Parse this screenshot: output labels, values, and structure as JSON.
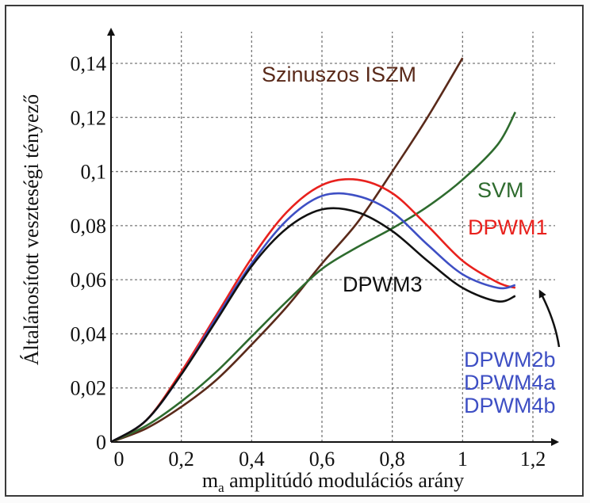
{
  "chart_data": {
    "type": "line",
    "title": "",
    "xlabel_main": "m",
    "xlabel_sub": "a",
    "xlabel_rest": " amplitúdó modulációs arány",
    "ylabel": "Általánosított veszteségi tényező",
    "xlim": [
      0,
      1.2
    ],
    "ylim": [
      0,
      0.14
    ],
    "grid": true,
    "xticks": [
      {
        "value": 0,
        "label": "0"
      },
      {
        "value": 0.2,
        "label": "0,2"
      },
      {
        "value": 0.4,
        "label": "0,4"
      },
      {
        "value": 0.6,
        "label": "0,6"
      },
      {
        "value": 0.8,
        "label": "0,8"
      },
      {
        "value": 1.0,
        "label": "1"
      },
      {
        "value": 1.2,
        "label": "1,2"
      }
    ],
    "yticks": [
      {
        "value": 0,
        "label": "0"
      },
      {
        "value": 0.02,
        "label": "0,02"
      },
      {
        "value": 0.04,
        "label": "0,04"
      },
      {
        "value": 0.06,
        "label": "0,06"
      },
      {
        "value": 0.08,
        "label": "0,08"
      },
      {
        "value": 0.1,
        "label": "0,1"
      },
      {
        "value": 0.12,
        "label": "0,12"
      },
      {
        "value": 0.14,
        "label": "0,14"
      }
    ],
    "series": [
      {
        "name": "Szinuszos ISZM",
        "color": "#5a2a1a",
        "x": [
          0,
          0.1,
          0.2,
          0.3,
          0.4,
          0.5,
          0.6,
          0.7,
          0.8,
          0.9,
          1.0
        ],
        "y": [
          0,
          0.005,
          0.013,
          0.023,
          0.036,
          0.05,
          0.066,
          0.081,
          0.1,
          0.12,
          0.142
        ]
      },
      {
        "name": "SVM",
        "color": "#2e6b2e",
        "x": [
          0,
          0.1,
          0.2,
          0.3,
          0.4,
          0.5,
          0.6,
          0.7,
          0.8,
          0.9,
          1.0,
          1.1,
          1.15
        ],
        "y": [
          0,
          0.006,
          0.015,
          0.026,
          0.039,
          0.052,
          0.064,
          0.072,
          0.079,
          0.087,
          0.097,
          0.11,
          0.122
        ]
      },
      {
        "name": "DPWM1",
        "color": "#e8211d",
        "x": [
          0,
          0.1,
          0.2,
          0.3,
          0.4,
          0.5,
          0.6,
          0.7,
          0.8,
          0.9,
          1.0,
          1.1,
          1.15
        ],
        "y": [
          0,
          0.008,
          0.026,
          0.047,
          0.068,
          0.085,
          0.095,
          0.097,
          0.092,
          0.08,
          0.067,
          0.059,
          0.057
        ]
      },
      {
        "name": "DPWM2b, DPWM4a, DPWM4b",
        "color": "#3e4fc4",
        "x": [
          0,
          0.1,
          0.2,
          0.3,
          0.4,
          0.5,
          0.6,
          0.7,
          0.8,
          0.9,
          1.0,
          1.1,
          1.15
        ],
        "y": [
          0,
          0.008,
          0.025,
          0.046,
          0.066,
          0.082,
          0.091,
          0.091,
          0.085,
          0.073,
          0.062,
          0.057,
          0.058
        ]
      },
      {
        "name": "DPWM3",
        "color": "#111111",
        "x": [
          0,
          0.1,
          0.2,
          0.3,
          0.4,
          0.5,
          0.6,
          0.7,
          0.8,
          0.9,
          1.0,
          1.1,
          1.15
        ],
        "y": [
          0,
          0.008,
          0.025,
          0.045,
          0.065,
          0.079,
          0.086,
          0.085,
          0.078,
          0.067,
          0.057,
          0.052,
          0.054
        ]
      }
    ],
    "labels": [
      {
        "text": "Szinuszos ISZM",
        "color": "#5a2a1a"
      },
      {
        "text": "SVM",
        "color": "#2e6b2e"
      },
      {
        "text": "DPWM1",
        "color": "#e8211d"
      },
      {
        "text": "DPWM3",
        "color": "#111111"
      },
      {
        "text": "DPWM2b",
        "color": "#3e4fc4"
      },
      {
        "text": "DPWM4a",
        "color": "#3e4fc4"
      },
      {
        "text": "DPWM4b",
        "color": "#3e4fc4"
      }
    ]
  }
}
